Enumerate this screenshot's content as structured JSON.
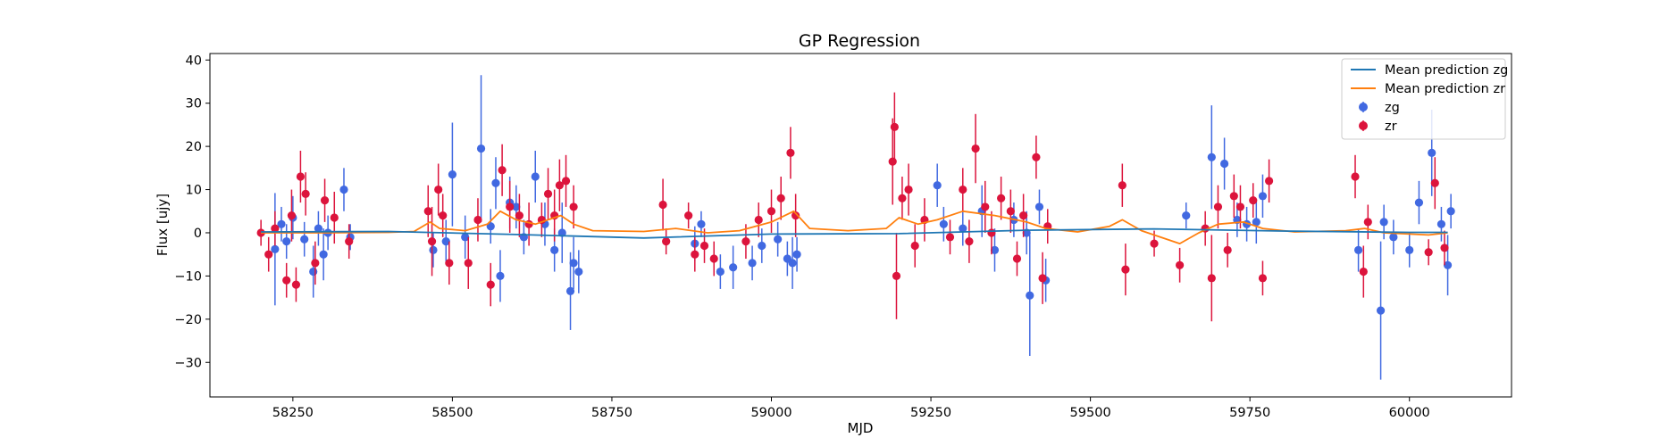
{
  "chart_data": {
    "type": "scatter",
    "title": "GP Regression",
    "xlabel": "MJD",
    "ylabel": "Flux [ujy]",
    "xlim": [
      58120,
      60160
    ],
    "ylim": [
      -38,
      41.5
    ],
    "xticks": [
      58250,
      58500,
      58750,
      59000,
      59250,
      59500,
      59750,
      60000
    ],
    "yticks": [
      -30,
      -20,
      -10,
      0,
      10,
      20,
      30,
      40
    ],
    "grid": false,
    "legend_position": "top-right",
    "legend": [
      "Mean prediction zg",
      "Mean prediction zr",
      "zg",
      "zr"
    ],
    "colors": {
      "zg": "#4169e1",
      "zr": "#dc143c",
      "mean_zg": "#1f77b4",
      "mean_zr": "#ff7f0e"
    },
    "series": [
      {
        "name": "Mean prediction zg",
        "kind": "line",
        "points": [
          [
            58200,
            0.2
          ],
          [
            58400,
            0.3
          ],
          [
            58600,
            -0.4
          ],
          [
            58800,
            -1.2
          ],
          [
            59000,
            -0.3
          ],
          [
            59200,
            -0.2
          ],
          [
            59400,
            0.6
          ],
          [
            59600,
            0.9
          ],
          [
            59800,
            0.4
          ],
          [
            60000,
            0.1
          ],
          [
            60060,
            0.1
          ]
        ]
      },
      {
        "name": "Mean prediction zr",
        "kind": "line",
        "points": [
          [
            58200,
            0.0
          ],
          [
            58300,
            0.0
          ],
          [
            58400,
            0.1
          ],
          [
            58440,
            0.3
          ],
          [
            58465,
            2.5
          ],
          [
            58480,
            1.0
          ],
          [
            58520,
            0.5
          ],
          [
            58555,
            2.0
          ],
          [
            58575,
            5.0
          ],
          [
            58600,
            3.0
          ],
          [
            58630,
            2.0
          ],
          [
            58650,
            3.0
          ],
          [
            58670,
            4.0
          ],
          [
            58690,
            2.0
          ],
          [
            58720,
            0.5
          ],
          [
            58800,
            0.3
          ],
          [
            58850,
            1.0
          ],
          [
            58900,
            0.0
          ],
          [
            58950,
            0.5
          ],
          [
            59000,
            2.5
          ],
          [
            59035,
            5.0
          ],
          [
            59060,
            1.0
          ],
          [
            59120,
            0.5
          ],
          [
            59180,
            1.0
          ],
          [
            59200,
            3.5
          ],
          [
            59230,
            2.0
          ],
          [
            59260,
            3.0
          ],
          [
            59300,
            5.0
          ],
          [
            59350,
            4.0
          ],
          [
            59400,
            2.5
          ],
          [
            59430,
            1.0
          ],
          [
            59480,
            0.2
          ],
          [
            59530,
            1.5
          ],
          [
            59550,
            3.0
          ],
          [
            59580,
            0.5
          ],
          [
            59640,
            -2.5
          ],
          [
            59670,
            0.0
          ],
          [
            59700,
            2.0
          ],
          [
            59740,
            2.5
          ],
          [
            59770,
            1.0
          ],
          [
            59820,
            0.2
          ],
          [
            59900,
            0.5
          ],
          [
            59930,
            1.0
          ],
          [
            59960,
            0.0
          ],
          [
            60030,
            -0.5
          ],
          [
            60060,
            0.0
          ]
        ]
      },
      {
        "name": "zg",
        "kind": "errorbar",
        "points": [
          [
            58222,
            -3.8,
            13
          ],
          [
            58232,
            2.0,
            4
          ],
          [
            58240,
            -2.0,
            4
          ],
          [
            58250,
            3.5,
            5
          ],
          [
            58268,
            -1.5,
            4
          ],
          [
            58282,
            -9.0,
            6
          ],
          [
            58290,
            1.0,
            4
          ],
          [
            58298,
            -5.0,
            6
          ],
          [
            58305,
            0.0,
            4
          ],
          [
            58330,
            10.0,
            5
          ],
          [
            58340,
            -1.0,
            3
          ],
          [
            58470,
            -4.0,
            4
          ],
          [
            58490,
            -2.0,
            5
          ],
          [
            58500,
            13.5,
            12
          ],
          [
            58520,
            -1.0,
            5
          ],
          [
            58545,
            19.5,
            17
          ],
          [
            58560,
            1.5,
            4
          ],
          [
            58568,
            11.5,
            6
          ],
          [
            58575,
            -10.0,
            6
          ],
          [
            58590,
            7.0,
            6
          ],
          [
            58600,
            6.0,
            5
          ],
          [
            58612,
            -1.0,
            4
          ],
          [
            58630,
            13.0,
            6
          ],
          [
            58645,
            2.0,
            5
          ],
          [
            58660,
            -4.0,
            5
          ],
          [
            58672,
            0.0,
            7
          ],
          [
            58685,
            -13.5,
            9
          ],
          [
            58690,
            -7.0,
            6
          ],
          [
            58698,
            -9.0,
            5
          ],
          [
            58880,
            -2.5,
            4
          ],
          [
            58890,
            2.0,
            3
          ],
          [
            58920,
            -9.0,
            4
          ],
          [
            58940,
            -8.0,
            5
          ],
          [
            58970,
            -7.0,
            4
          ],
          [
            58985,
            -3.0,
            4
          ],
          [
            59010,
            -1.5,
            4
          ],
          [
            59025,
            -6.0,
            4
          ],
          [
            59033,
            -7.0,
            6
          ],
          [
            59040,
            -5.0,
            4
          ],
          [
            59260,
            11.0,
            5
          ],
          [
            59270,
            2.0,
            4
          ],
          [
            59300,
            1.0,
            4
          ],
          [
            59330,
            5.0,
            6
          ],
          [
            59350,
            -4.0,
            5
          ],
          [
            59380,
            3.0,
            4
          ],
          [
            59400,
            0.0,
            5
          ],
          [
            59405,
            -14.5,
            14
          ],
          [
            59420,
            6.0,
            4
          ],
          [
            59430,
            -11.0,
            5
          ],
          [
            59650,
            4.0,
            3
          ],
          [
            59690,
            17.5,
            12
          ],
          [
            59710,
            16.0,
            6
          ],
          [
            59730,
            3.0,
            4
          ],
          [
            59745,
            2.0,
            4
          ],
          [
            59760,
            2.5,
            5
          ],
          [
            59770,
            8.5,
            5
          ],
          [
            59920,
            -4.0,
            5
          ],
          [
            59955,
            -18.0,
            16
          ],
          [
            59960,
            2.5,
            4
          ],
          [
            59975,
            -1.0,
            4
          ],
          [
            60000,
            -4.0,
            4
          ],
          [
            60015,
            7.0,
            5
          ],
          [
            60035,
            18.5,
            10
          ],
          [
            60050,
            2.0,
            4
          ],
          [
            60060,
            -7.5,
            7
          ],
          [
            60065,
            5.0,
            4
          ]
        ]
      },
      {
        "name": "zr",
        "kind": "errorbar",
        "points": [
          [
            58200,
            0.0,
            3
          ],
          [
            58212,
            -5.0,
            4
          ],
          [
            58222,
            1.0,
            4
          ],
          [
            58240,
            -11.0,
            4
          ],
          [
            58248,
            4.0,
            6
          ],
          [
            58255,
            -12.0,
            4
          ],
          [
            58262,
            13.0,
            6
          ],
          [
            58270,
            9.0,
            5
          ],
          [
            58285,
            -7.0,
            5
          ],
          [
            58300,
            7.5,
            5
          ],
          [
            58315,
            3.5,
            6
          ],
          [
            58338,
            -2.0,
            4
          ],
          [
            58462,
            5.0,
            6
          ],
          [
            58468,
            -2.0,
            8
          ],
          [
            58478,
            10.0,
            6
          ],
          [
            58485,
            4.0,
            5
          ],
          [
            58495,
            -7.0,
            5
          ],
          [
            58525,
            -7.0,
            6
          ],
          [
            58540,
            3.0,
            5
          ],
          [
            58560,
            -12.0,
            5
          ],
          [
            58578,
            14.5,
            6
          ],
          [
            58590,
            6.0,
            6
          ],
          [
            58605,
            4.0,
            5
          ],
          [
            58620,
            2.0,
            5
          ],
          [
            58640,
            3.0,
            4
          ],
          [
            58650,
            9.0,
            6
          ],
          [
            58660,
            4.0,
            6
          ],
          [
            58668,
            11.0,
            6
          ],
          [
            58678,
            12.0,
            6
          ],
          [
            58690,
            6.0,
            5
          ],
          [
            58830,
            6.5,
            6
          ],
          [
            58835,
            -2.0,
            3
          ],
          [
            58870,
            4.0,
            3
          ],
          [
            58880,
            -5.0,
            4
          ],
          [
            58895,
            -3.0,
            4
          ],
          [
            58910,
            -6.0,
            4
          ],
          [
            58960,
            -2.0,
            4
          ],
          [
            58980,
            3.0,
            4
          ],
          [
            59000,
            5.0,
            5
          ],
          [
            59015,
            8.0,
            5
          ],
          [
            59030,
            18.5,
            6
          ],
          [
            59038,
            4.0,
            5
          ],
          [
            59190,
            16.5,
            10
          ],
          [
            59193,
            24.5,
            8
          ],
          [
            59196,
            -10.0,
            10
          ],
          [
            59205,
            8.0,
            5
          ],
          [
            59215,
            10.0,
            6
          ],
          [
            59225,
            -3.0,
            5
          ],
          [
            59240,
            3.0,
            5
          ],
          [
            59280,
            -1.0,
            4
          ],
          [
            59300,
            10.0,
            5
          ],
          [
            59310,
            -2.0,
            5
          ],
          [
            59320,
            19.5,
            8
          ],
          [
            59335,
            6.0,
            6
          ],
          [
            59345,
            0.0,
            5
          ],
          [
            59360,
            8.0,
            5
          ],
          [
            59375,
            5.0,
            5
          ],
          [
            59385,
            -6.0,
            4
          ],
          [
            59395,
            4.0,
            5
          ],
          [
            59415,
            17.5,
            5
          ],
          [
            59425,
            -10.5,
            6
          ],
          [
            59433,
            1.5,
            4
          ],
          [
            59550,
            11.0,
            5
          ],
          [
            59555,
            -8.5,
            6
          ],
          [
            59600,
            -2.5,
            3
          ],
          [
            59640,
            -7.5,
            4
          ],
          [
            59680,
            1.0,
            4
          ],
          [
            59690,
            -10.5,
            10
          ],
          [
            59700,
            6.0,
            5
          ],
          [
            59715,
            -4.0,
            4
          ],
          [
            59725,
            8.5,
            5
          ],
          [
            59735,
            6.0,
            5
          ],
          [
            59755,
            7.5,
            4
          ],
          [
            59770,
            -10.5,
            4
          ],
          [
            59780,
            12.0,
            5
          ],
          [
            59915,
            13.0,
            5
          ],
          [
            59928,
            -9.0,
            6
          ],
          [
            59935,
            2.5,
            4
          ],
          [
            60030,
            -4.5,
            3
          ],
          [
            60040,
            11.5,
            6
          ],
          [
            60055,
            -3.5,
            4
          ]
        ]
      }
    ]
  }
}
